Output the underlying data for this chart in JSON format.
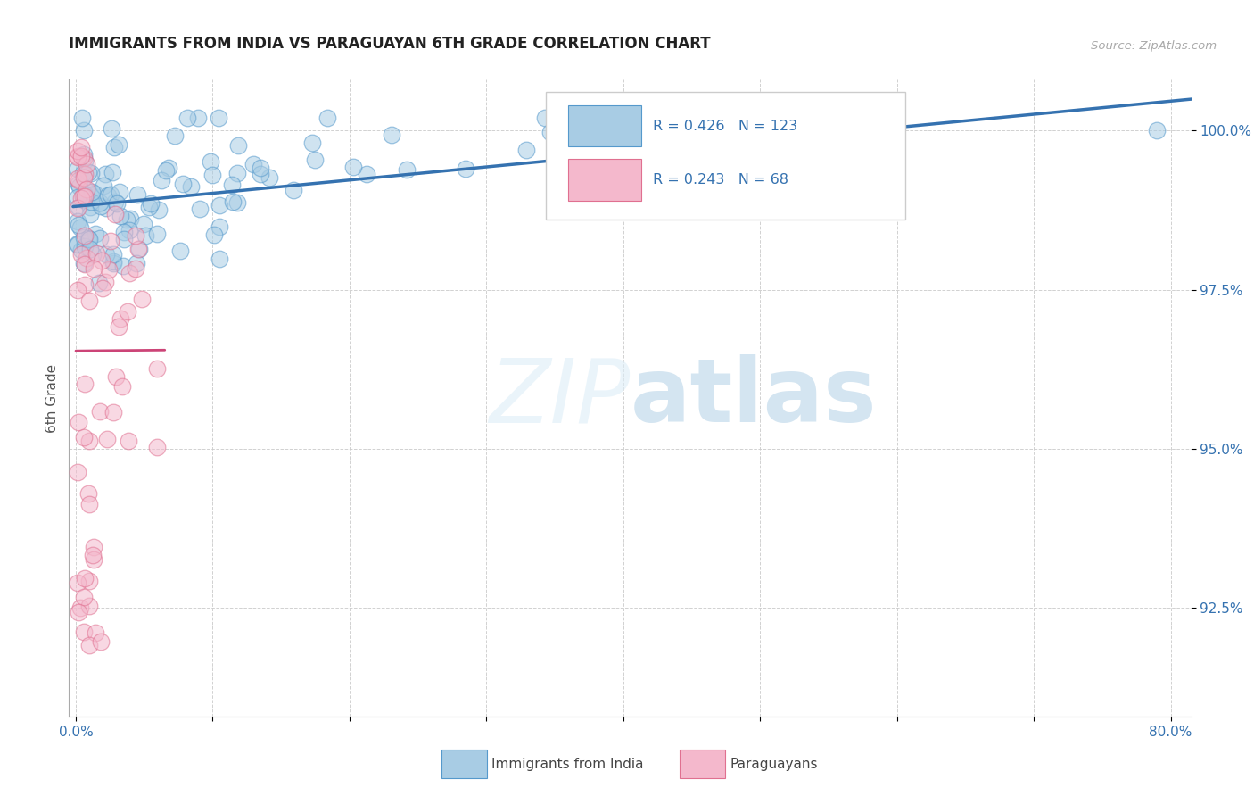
{
  "title": "IMMIGRANTS FROM INDIA VS PARAGUAYAN 6TH GRADE CORRELATION CHART",
  "source": "Source: ZipAtlas.com",
  "ylabel": "6th Grade",
  "xlim": [
    -0.005,
    0.815
  ],
  "ylim": [
    0.908,
    1.008
  ],
  "xtick_positions": [
    0.0,
    0.1,
    0.2,
    0.3,
    0.4,
    0.5,
    0.6,
    0.7,
    0.8
  ],
  "xticklabels": [
    "0.0%",
    "",
    "",
    "",
    "",
    "",
    "",
    "",
    "80.0%"
  ],
  "ytick_positions": [
    0.925,
    0.95,
    0.975,
    1.0
  ],
  "yticklabels": [
    "92.5%",
    "95.0%",
    "97.5%",
    "100.0%"
  ],
  "india_color": "#a8cce4",
  "india_edge": "#5599cc",
  "paraguay_color": "#f4b8cc",
  "paraguay_edge": "#e07090",
  "trend_india_color": "#3572b0",
  "trend_paraguay_color": "#cc4477",
  "legend_india_label": "Immigrants from India",
  "legend_paraguay_label": "Paraguayans",
  "R_india": 0.426,
  "N_india": 123,
  "R_paraguay": 0.243,
  "N_paraguay": 68,
  "watermark": "ZIPatlas",
  "title_fontsize": 12,
  "tick_fontsize": 11,
  "source_color": "#aaaaaa",
  "tick_color": "#3572b0",
  "ylabel_color": "#555555",
  "grid_color": "#cccccc",
  "legend_edge_color": "#cccccc"
}
